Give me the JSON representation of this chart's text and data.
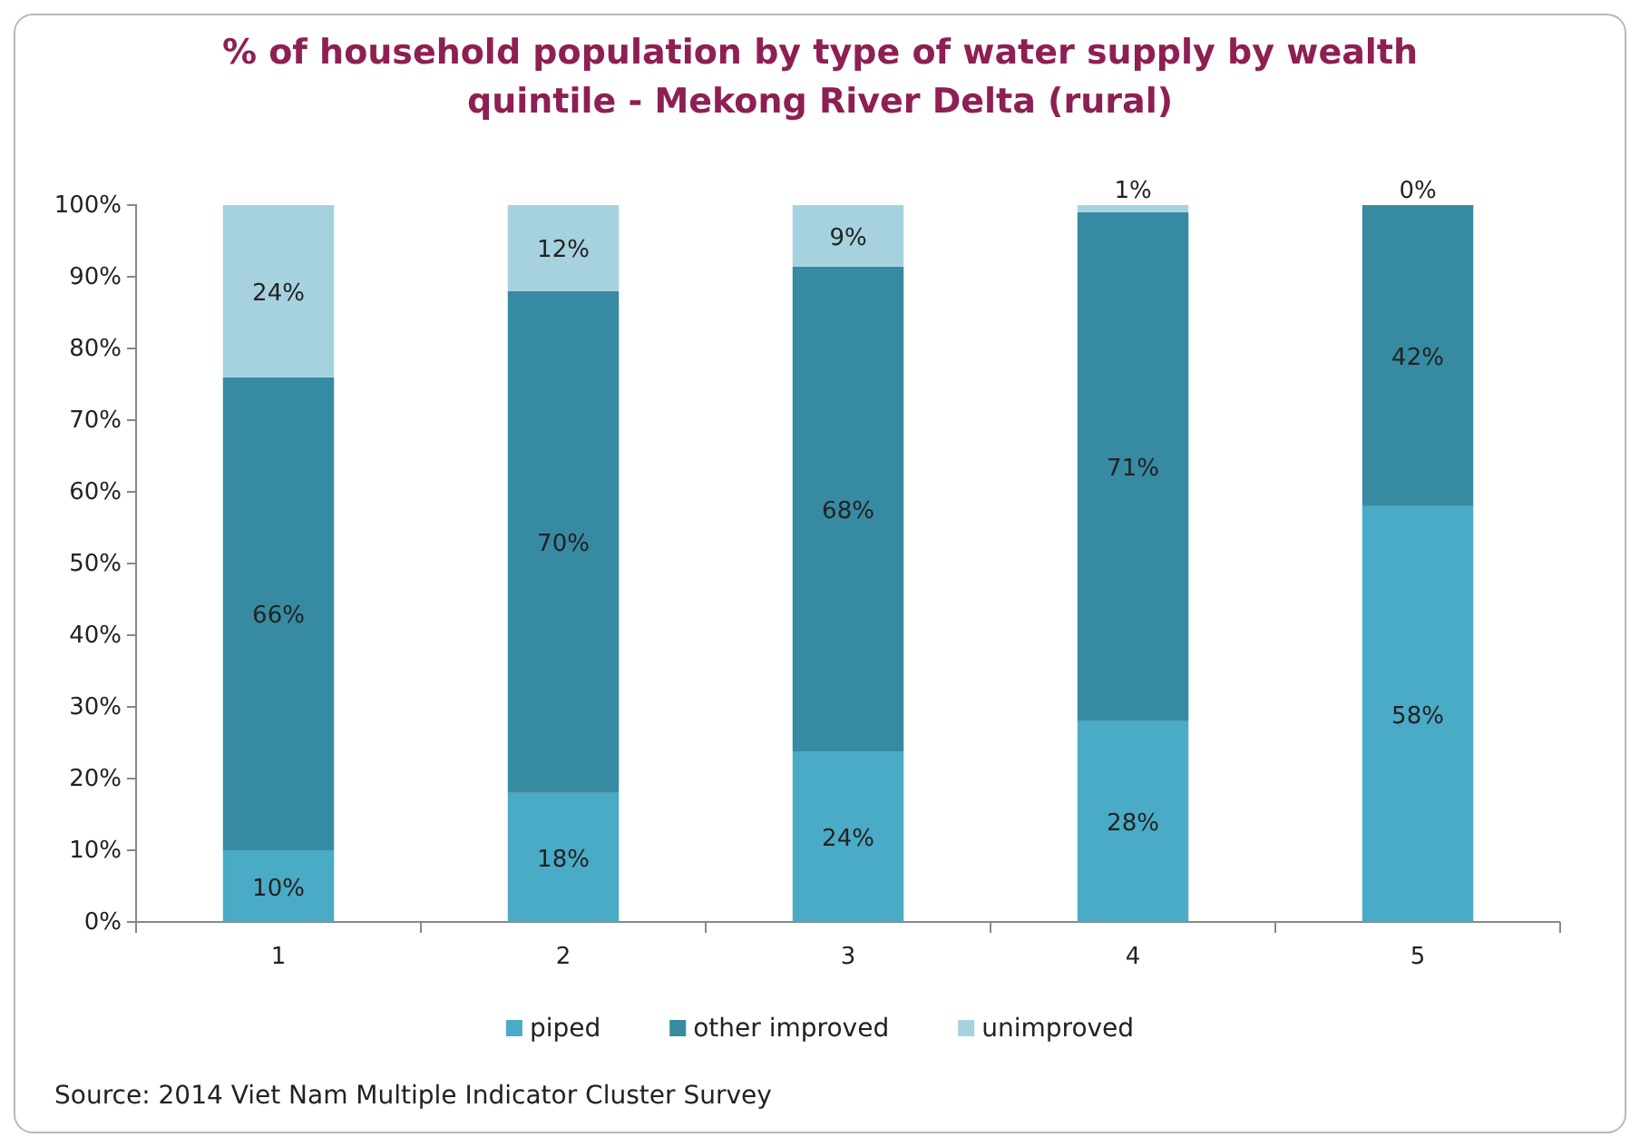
{
  "chart_data": {
    "type": "bar",
    "stacked": true,
    "title": "% of household population by type of water supply by wealth quintile - Mekong River Delta (rural)",
    "categories": [
      "1",
      "2",
      "3",
      "4",
      "5"
    ],
    "series": [
      {
        "name": "piped",
        "color": "#4aabc6",
        "values": [
          10,
          18,
          23.8,
          28,
          58
        ],
        "value_labels": [
          "10%",
          "18%",
          "24%",
          "28%",
          "58%"
        ]
      },
      {
        "name": "other improved",
        "color": "#368ba2",
        "values": [
          66,
          70,
          67.6,
          71,
          42
        ],
        "value_labels": [
          "66%",
          "70%",
          "68%",
          "71%",
          "42%"
        ]
      },
      {
        "name": "unimproved",
        "color": "#a6d2df",
        "values": [
          24,
          12,
          8.6,
          1,
          0
        ],
        "value_labels": [
          "24%",
          "12%",
          "9%",
          "1%",
          "0%"
        ]
      }
    ],
    "ylim": [
      0,
      100
    ],
    "yticks": [
      {
        "value": 0,
        "label": "0%"
      },
      {
        "value": 10,
        "label": "10%"
      },
      {
        "value": 20,
        "label": "20%"
      },
      {
        "value": 30,
        "label": "30%"
      },
      {
        "value": 40,
        "label": "40%"
      },
      {
        "value": 50,
        "label": "50%"
      },
      {
        "value": 60,
        "label": "60%"
      },
      {
        "value": 70,
        "label": "70%"
      },
      {
        "value": 80,
        "label": "80%"
      },
      {
        "value": 90,
        "label": "90%"
      },
      {
        "value": 100,
        "label": "100%"
      }
    ],
    "legend": "bottom",
    "annotations": [
      "Source: 2014 Viet Nam Multiple Indicator Cluster Survey"
    ]
  }
}
